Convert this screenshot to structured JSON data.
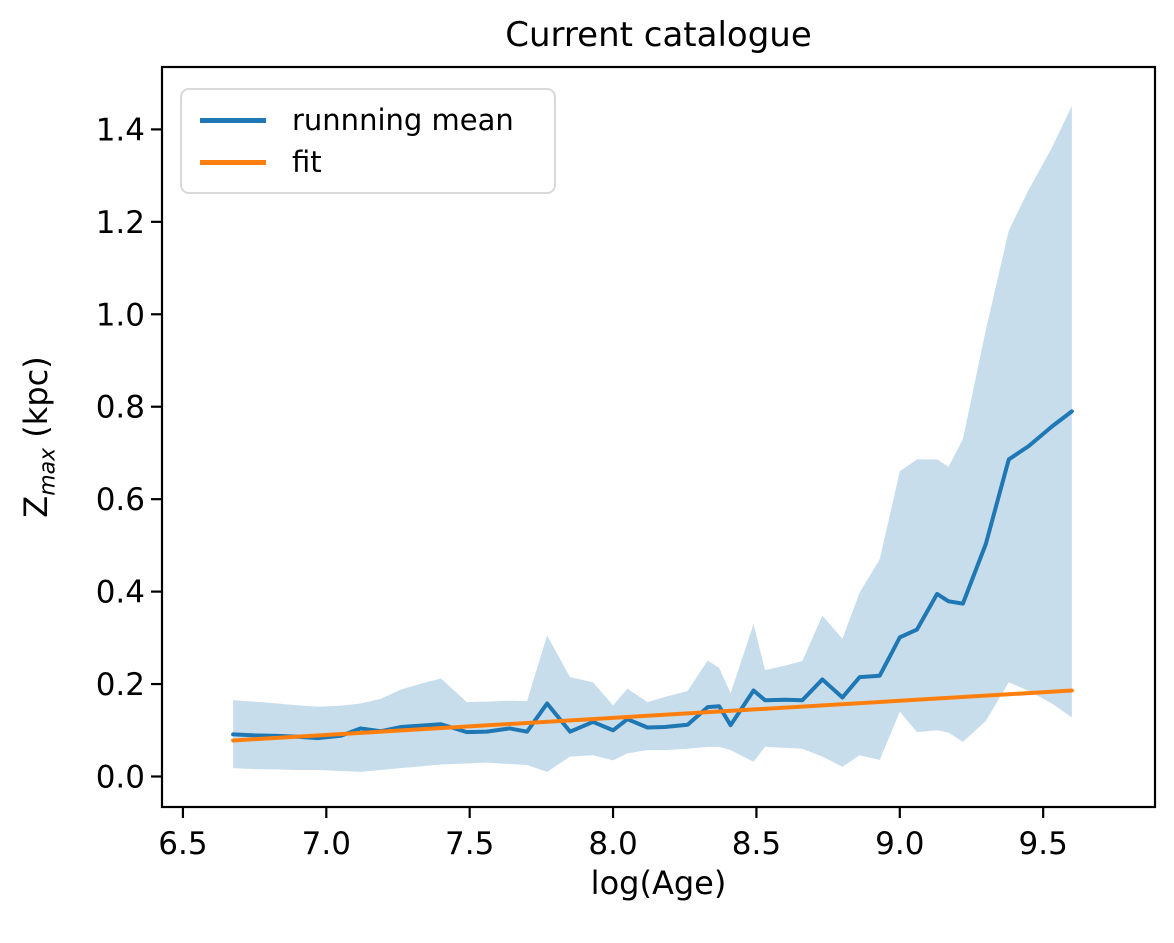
{
  "title": "Current catalogue",
  "axes": {
    "xlabel": "log(Age)",
    "ylabel_parts": {
      "base": "Z",
      "sub": "max",
      "rest": " (kpc)"
    }
  },
  "legend": {
    "position": "upper left",
    "entries": [
      {
        "label": "runnning mean",
        "color": "#1f77b4"
      },
      {
        "label": "fit",
        "color": "#ff7f0e"
      }
    ]
  },
  "chart_data": {
    "type": "line",
    "title": "Current catalogue",
    "xlabel": "log(Age)",
    "ylabel": "Z_max (kpc)",
    "xlim": [
      6.427,
      9.89
    ],
    "ylim": [
      -0.066,
      1.535
    ],
    "grid": false,
    "legend_position": "upper left",
    "x_ticks": [
      6.5,
      7.0,
      7.5,
      8.0,
      8.5,
      9.0,
      9.5
    ],
    "x_tick_labels": [
      "6.5",
      "7.0",
      "7.5",
      "8.0",
      "8.5",
      "9.0",
      "9.5"
    ],
    "y_ticks": [
      0.0,
      0.2,
      0.4,
      0.6,
      0.8,
      1.0,
      1.2,
      1.4
    ],
    "y_tick_labels": [
      "0.0",
      "0.2",
      "0.4",
      "0.6",
      "0.8",
      "1.0",
      "1.2",
      "1.4"
    ],
    "series": [
      {
        "name": "runnning mean",
        "kind": "line",
        "color": "#1f77b4",
        "x": [
          6.675,
          6.75,
          6.83,
          6.9,
          6.97,
          7.05,
          7.12,
          7.19,
          7.26,
          7.33,
          7.4,
          7.49,
          7.56,
          7.64,
          7.7,
          7.77,
          7.85,
          7.93,
          8.0,
          8.05,
          8.12,
          8.18,
          8.26,
          8.33,
          8.37,
          8.41,
          8.49,
          8.53,
          8.6,
          8.66,
          8.73,
          8.8,
          8.86,
          8.93,
          9.0,
          9.06,
          9.13,
          9.17,
          9.22,
          9.3,
          9.38,
          9.45,
          9.53,
          9.6
        ],
        "y": [
          0.091,
          0.089,
          0.088,
          0.086,
          0.083,
          0.088,
          0.104,
          0.098,
          0.107,
          0.11,
          0.113,
          0.096,
          0.097,
          0.104,
          0.097,
          0.158,
          0.097,
          0.118,
          0.1,
          0.124,
          0.106,
          0.107,
          0.112,
          0.15,
          0.152,
          0.111,
          0.186,
          0.165,
          0.166,
          0.165,
          0.21,
          0.171,
          0.215,
          0.218,
          0.301,
          0.318,
          0.395,
          0.379,
          0.374,
          0.503,
          0.686,
          0.715,
          0.757,
          0.79
        ]
      },
      {
        "name": "fit",
        "kind": "line",
        "color": "#ff7f0e",
        "x": [
          6.675,
          9.6
        ],
        "y": [
          0.078,
          0.186
        ]
      },
      {
        "name": "std band",
        "kind": "band",
        "color": "#1f77b4",
        "opacity": 0.25,
        "x": [
          6.675,
          6.75,
          6.83,
          6.9,
          6.97,
          7.05,
          7.12,
          7.19,
          7.26,
          7.33,
          7.4,
          7.49,
          7.56,
          7.64,
          7.7,
          7.77,
          7.85,
          7.93,
          8.0,
          8.05,
          8.12,
          8.18,
          8.26,
          8.33,
          8.37,
          8.41,
          8.49,
          8.53,
          8.6,
          8.66,
          8.73,
          8.8,
          8.86,
          8.93,
          9.0,
          9.06,
          9.13,
          9.17,
          9.22,
          9.3,
          9.38,
          9.45,
          9.53,
          9.6
        ],
        "y_lower": [
          0.018,
          0.016,
          0.015,
          0.014,
          0.014,
          0.012,
          0.01,
          0.014,
          0.018,
          0.022,
          0.026,
          0.028,
          0.03,
          0.027,
          0.025,
          0.01,
          0.043,
          0.046,
          0.035,
          0.05,
          0.057,
          0.057,
          0.06,
          0.064,
          0.064,
          0.057,
          0.032,
          0.064,
          0.062,
          0.06,
          0.043,
          0.021,
          0.046,
          0.036,
          0.14,
          0.096,
          0.1,
          0.095,
          0.075,
          0.12,
          0.204,
          0.185,
          0.158,
          0.128
        ],
        "y_upper": [
          0.165,
          0.162,
          0.158,
          0.154,
          0.151,
          0.153,
          0.158,
          0.168,
          0.188,
          0.201,
          0.212,
          0.161,
          0.162,
          0.164,
          0.163,
          0.305,
          0.215,
          0.204,
          0.154,
          0.19,
          0.161,
          0.172,
          0.185,
          0.251,
          0.235,
          0.18,
          0.33,
          0.23,
          0.24,
          0.25,
          0.348,
          0.298,
          0.398,
          0.47,
          0.66,
          0.686,
          0.686,
          0.67,
          0.73,
          0.966,
          1.181,
          1.27,
          1.36,
          1.451
        ]
      }
    ]
  }
}
